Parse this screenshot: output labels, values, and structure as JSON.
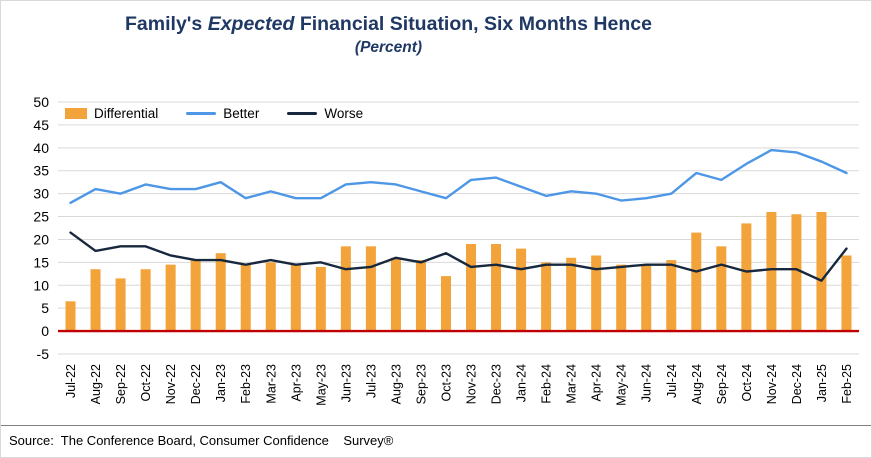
{
  "title": {
    "prefix": "Family's",
    "italic": "Expected",
    "suffix": "Financial Situation, Six Months Hence",
    "subtitle": "(Percent)"
  },
  "footer": {
    "source": "Source:  The Conference Board, Consumer Confidence    Survey®"
  },
  "chart_data": {
    "type": "combo",
    "title": "Family's Expected Financial Situation, Six Months Hence (Percent)",
    "categories": [
      "Jul-22",
      "Aug-22",
      "Sep-22",
      "Oct-22",
      "Nov-22",
      "Dec-22",
      "Jan-23",
      "Feb-23",
      "Mar-23",
      "Apr-23",
      "May-23",
      "Jun-23",
      "Jul-23",
      "Aug-23",
      "Sep-23",
      "Oct-23",
      "Nov-23",
      "Dec-23",
      "Jan-24",
      "Feb-24",
      "Mar-24",
      "Apr-24",
      "May-24",
      "Jun-24",
      "Jul-24",
      "Aug-24",
      "Sep-24",
      "Oct-24",
      "Nov-24",
      "Dec-24",
      "Jan-25",
      "Feb-25"
    ],
    "series": [
      {
        "name": "Differential",
        "type": "bar",
        "color": "#F2A33A",
        "values": [
          6.5,
          13.5,
          11.5,
          13.5,
          14.5,
          15.5,
          17,
          14.5,
          15,
          14.5,
          14,
          18.5,
          18.5,
          16,
          15.5,
          12,
          19,
          19,
          18,
          15,
          16,
          16.5,
          14.5,
          14.5,
          15.5,
          21.5,
          18.5,
          23.5,
          26,
          25.5,
          26,
          16.5
        ]
      },
      {
        "name": "Better",
        "type": "line",
        "color": "#4D97E6",
        "values": [
          28,
          31,
          30,
          32,
          31,
          31,
          32.5,
          29,
          30.5,
          29,
          29,
          32,
          32.5,
          32,
          30.5,
          29,
          33,
          33.5,
          31.5,
          29.5,
          30.5,
          30,
          28.5,
          29,
          30,
          34.5,
          33,
          36.5,
          39.5,
          39,
          37,
          34.5
        ]
      },
      {
        "name": "Worse",
        "type": "line",
        "color": "#17283E",
        "values": [
          21.5,
          17.5,
          18.5,
          18.5,
          16.5,
          15.5,
          15.5,
          14.5,
          15.5,
          14.5,
          15,
          13.5,
          14,
          16,
          15,
          17,
          14,
          14.5,
          13.5,
          14.5,
          14.5,
          13.5,
          14,
          14.5,
          14.5,
          13,
          14.5,
          13,
          13.5,
          13.5,
          11,
          18
        ]
      }
    ],
    "ylim": [
      -5,
      50
    ],
    "ytick_step": 5,
    "grid": true,
    "gridline_color": "#D9D9D9",
    "zero_line_color": "#C00000",
    "legend_position": "top-left-inside",
    "xlabel": "",
    "ylabel": ""
  }
}
